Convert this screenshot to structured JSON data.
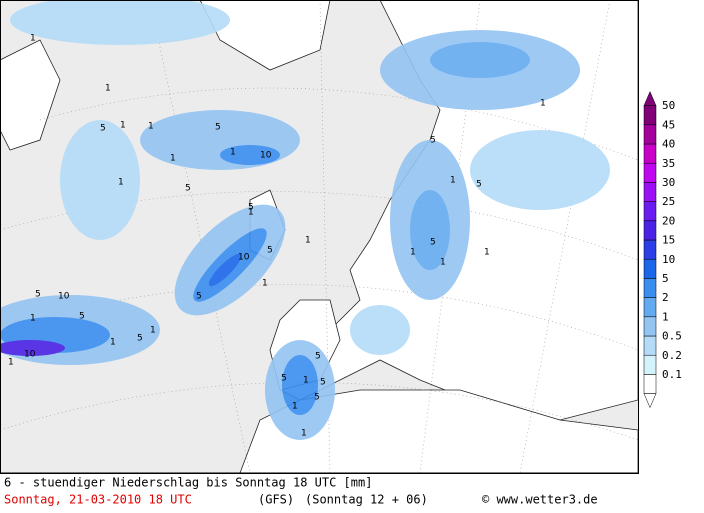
{
  "footer": {
    "title": "6 - stuendiger Niederschlag bis Sonntag 18 UTC [mm]",
    "date": "Sonntag, 21-03-2010  18 UTC",
    "model": "(GFS)",
    "run": "(Sonntag 12 + 06)",
    "copyright": "© www.wetter3.de"
  },
  "legend": {
    "levels": [
      "0.1",
      "0.2",
      "0.5",
      "1",
      "2",
      "5",
      "10",
      "15",
      "20",
      "25",
      "30",
      "35",
      "40",
      "45",
      "50"
    ],
    "colors": [
      "#ffffff",
      "#d4f2fc",
      "#b4dcf8",
      "#94c4f2",
      "#64aaf0",
      "#3a8ef0",
      "#1c66ea",
      "#2c3ee6",
      "#4a22e6",
      "#6a1cf0",
      "#9c10f4",
      "#c008f0",
      "#c800c8",
      "#a4009c",
      "#800078"
    ]
  },
  "contour_labels": [
    "1",
    "1",
    "1",
    "5",
    "1",
    "5",
    "1",
    "1",
    "5",
    "10",
    "1",
    "5",
    "1",
    "5",
    "10",
    "5",
    "1",
    "1",
    "5",
    "10",
    "1",
    "5",
    "1",
    "1",
    "5",
    "10",
    "1",
    "5",
    "1",
    "5",
    "5",
    "1",
    "1",
    "1",
    "5",
    "5",
    "1",
    "5",
    "1",
    "5",
    "1",
    "1"
  ]
}
